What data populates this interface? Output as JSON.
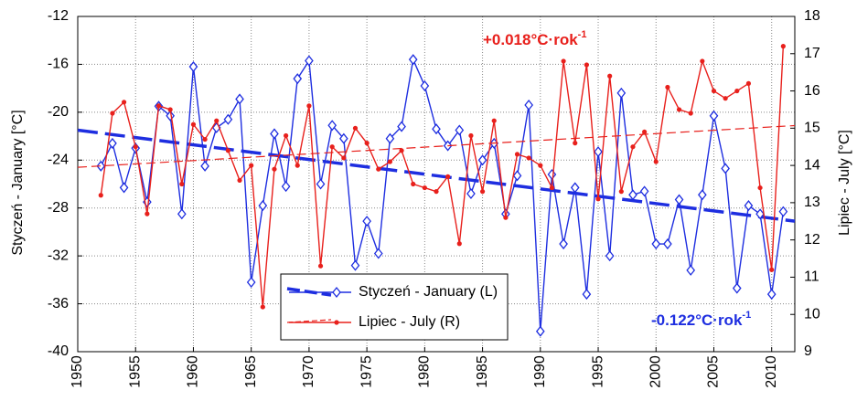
{
  "chart_data": {
    "type": "line",
    "y_label": "Styczeń - January [°C]",
    "y2_label": "Lipiec - July [°C]",
    "x": [
      1952,
      1953,
      1954,
      1955,
      1956,
      1957,
      1958,
      1959,
      1960,
      1961,
      1962,
      1963,
      1964,
      1965,
      1966,
      1967,
      1968,
      1969,
      1970,
      1971,
      1972,
      1973,
      1974,
      1975,
      1976,
      1977,
      1978,
      1979,
      1980,
      1981,
      1982,
      1983,
      1984,
      1985,
      1986,
      1987,
      1988,
      1989,
      1990,
      1991,
      1992,
      1993,
      1994,
      1995,
      1996,
      1997,
      1998,
      1999,
      2000,
      2001,
      2002,
      2003,
      2004,
      2005,
      2006,
      2007,
      2008,
      2009,
      2010,
      2011
    ],
    "series": [
      {
        "name": "Styczeń - January (L)",
        "color": "#1e2ee0",
        "axis": "y",
        "marker": "diamond",
        "values": [
          -24.5,
          -22.6,
          -26.3,
          -23.0,
          -27.5,
          -19.5,
          -20.3,
          -28.5,
          -16.2,
          -24.5,
          -21.3,
          -20.6,
          -18.9,
          -34.2,
          -27.8,
          -21.8,
          -26.2,
          -17.2,
          -15.7,
          -26.0,
          -21.1,
          -22.2,
          -32.8,
          -29.1,
          -31.8,
          -22.2,
          -21.2,
          -15.6,
          -17.8,
          -21.4,
          -22.8,
          -21.5,
          -26.8,
          -24.0,
          -22.6,
          -28.5,
          -25.3,
          -19.4,
          -38.3,
          -25.2,
          -31.0,
          -26.3,
          -35.2,
          -23.3,
          -32.0,
          -18.4,
          -26.9,
          -26.6,
          -31.0,
          -31.0,
          -27.3,
          -33.2,
          -26.9,
          -20.3,
          -24.7,
          -34.7,
          -27.8,
          -28.5,
          -35.2,
          -28.3
        ],
        "trend": {
          "x": [
            1950,
            2012
          ],
          "values": [
            -21.5,
            -29.1
          ]
        }
      },
      {
        "name": "Lipiec - July (R)",
        "color": "#e8201c",
        "axis": "y2",
        "marker": "dot",
        "values": [
          13.2,
          15.4,
          15.7,
          14.5,
          12.7,
          15.6,
          15.5,
          13.5,
          15.1,
          14.7,
          15.2,
          14.4,
          13.6,
          14.0,
          10.2,
          13.9,
          14.8,
          14.0,
          15.6,
          11.3,
          14.5,
          14.2,
          15.0,
          14.6,
          13.9,
          14.1,
          14.4,
          13.5,
          13.4,
          13.3,
          13.7,
          11.9,
          14.8,
          13.3,
          15.2,
          12.6,
          14.3,
          14.2,
          14.0,
          13.4,
          16.8,
          14.6,
          16.7,
          13.1,
          16.4,
          13.3,
          14.5,
          14.9,
          14.1,
          16.1,
          15.5,
          15.4,
          16.8,
          16.0,
          15.8,
          16.0,
          16.2,
          13.4,
          11.2,
          17.2
        ],
        "trend": {
          "x": [
            1950,
            2012
          ],
          "values": [
            13.95,
            15.07
          ]
        }
      }
    ],
    "annotations": [
      {
        "text": "+0.018°C·rok",
        "sup": "-1",
        "color": "#e8201c"
      },
      {
        "text": "-0.122°C·rok",
        "sup": "-1",
        "color": "#1e2ee0"
      }
    ],
    "xlim": [
      1950,
      2012
    ],
    "xticks": [
      1950,
      1955,
      1960,
      1965,
      1970,
      1975,
      1980,
      1985,
      1990,
      1995,
      2000,
      2005,
      2010
    ],
    "ylim": [
      -40,
      -12
    ],
    "yticks": [
      -40,
      -36,
      -32,
      -28,
      -24,
      -20,
      -16,
      -12
    ],
    "y2lim": [
      9,
      18
    ],
    "y2ticks": [
      9,
      10,
      11,
      12,
      13,
      14,
      15,
      16,
      17,
      18
    ],
    "grid": true
  }
}
